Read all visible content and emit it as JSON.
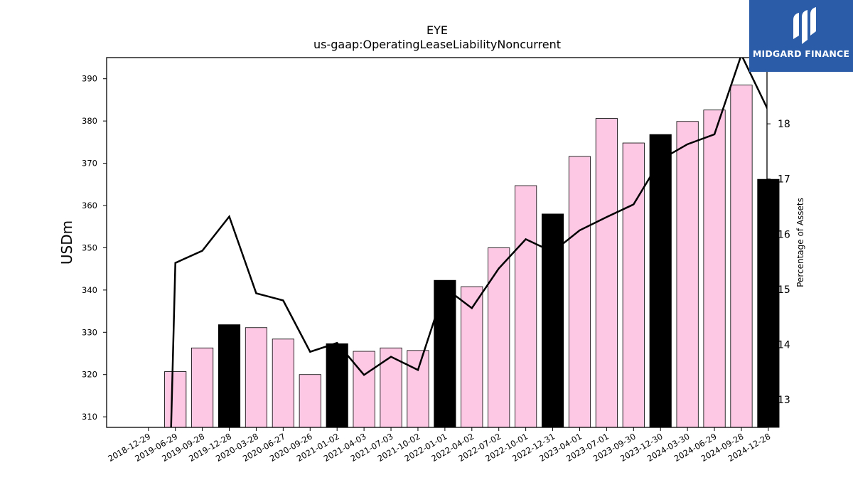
{
  "chart_data": {
    "type": "bar",
    "title": "EYE",
    "subtitle": "us-gaap:OperatingLeaseLiabilityNoncurrent",
    "ylabel": "USDm",
    "y2label": "Percentage of Assets",
    "categories": [
      "2018-12-29",
      "2019-06-29",
      "2019-09-28",
      "2019-12-28",
      "2020-03-28",
      "2020-06-27",
      "2020-09-26",
      "2021-01-02",
      "2021-04-03",
      "2021-07-03",
      "2021-10-02",
      "2022-01-01",
      "2022-04-02",
      "2022-07-02",
      "2022-10-01",
      "2022-12-31",
      "2023-04-01",
      "2023-07-01",
      "2023-09-30",
      "2023-12-30",
      "2024-03-30",
      "2024-06-29",
      "2024-09-28",
      "2024-12-28"
    ],
    "bar_fiscal_year_end": [
      false,
      false,
      false,
      true,
      false,
      false,
      false,
      true,
      false,
      false,
      false,
      true,
      false,
      false,
      false,
      true,
      false,
      false,
      false,
      true,
      false,
      false,
      false,
      true
    ],
    "bar_colors": {
      "quarter": "#fcc8e4",
      "year_end": "#000000"
    },
    "ylim": [
      307.5,
      395
    ],
    "y_ticks": [
      310,
      320,
      330,
      340,
      350,
      360,
      370,
      380,
      390
    ],
    "y2lim": [
      12.5,
      19.2
    ],
    "y2_ticks": [
      13,
      14,
      15,
      16,
      17,
      18
    ],
    "series": [
      {
        "type": "bar",
        "axis": "left",
        "values": [
          null,
          320.7,
          326.3,
          331.8,
          331.1,
          328.4,
          320.0,
          327.3,
          325.5,
          326.3,
          325.7,
          342.3,
          340.8,
          350.0,
          364.7,
          358.0,
          371.6,
          380.6,
          374.8,
          376.8,
          379.9,
          382.6,
          388.5,
          366.2
        ]
      },
      {
        "type": "line",
        "axis": "right",
        "color": "#000000",
        "values": [
          null,
          15.48,
          15.7,
          16.32,
          14.93,
          14.8,
          13.87,
          14.03,
          13.45,
          13.78,
          13.54,
          15.03,
          14.66,
          15.38,
          15.91,
          15.68,
          16.07,
          16.31,
          16.54,
          17.35,
          17.63,
          17.81,
          19.25,
          18.24
        ]
      }
    ],
    "grid": false,
    "legend": "none"
  },
  "logo": {
    "text": "MIDGARD FINANCE",
    "icon": "midgard-logo-icon"
  }
}
